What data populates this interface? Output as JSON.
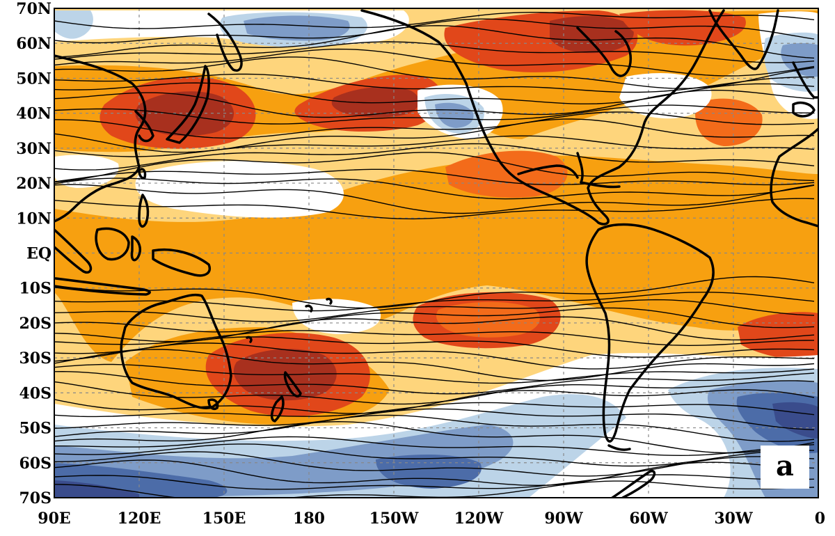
{
  "map": {
    "panel_label": "a",
    "colors": {
      "dark_red": "#a8301e",
      "red": "#e1471a",
      "orange_red": "#f36b1a",
      "orange": "#f7a010",
      "light_orange": "#fed57c",
      "white": "#ffffff",
      "light_blue": "#bcd4e8",
      "blue": "#7e9cc8",
      "dark_blue": "#4c6ca8",
      "navy": "#3a4c8c",
      "coastline": "#000000",
      "contour": "#000000",
      "grid": "#888888"
    },
    "lat_ticks": [
      {
        "label": "70N",
        "lat": 70
      },
      {
        "label": "60N",
        "lat": 60
      },
      {
        "label": "50N",
        "lat": 50
      },
      {
        "label": "40N",
        "lat": 40
      },
      {
        "label": "30N",
        "lat": 30
      },
      {
        "label": "20N",
        "lat": 20
      },
      {
        "label": "10N",
        "lat": 10
      },
      {
        "label": "EQ",
        "lat": 0
      },
      {
        "label": "10S",
        "lat": -10
      },
      {
        "label": "20S",
        "lat": -20
      },
      {
        "label": "30S",
        "lat": -30
      },
      {
        "label": "40S",
        "lat": -40
      },
      {
        "label": "50S",
        "lat": -50
      },
      {
        "label": "60S",
        "lat": -60
      },
      {
        "label": "70S",
        "lat": -70
      }
    ],
    "lon_ticks": [
      {
        "label": "90E",
        "lon": 90
      },
      {
        "label": "120E",
        "lon": 120
      },
      {
        "label": "150E",
        "lon": 150
      },
      {
        "label": "180",
        "lon": 180
      },
      {
        "label": "150W",
        "lon": 210
      },
      {
        "label": "120W",
        "lon": 240
      },
      {
        "label": "90W",
        "lon": 270
      },
      {
        "label": "60W",
        "lon": 300
      },
      {
        "label": "30W",
        "lon": 330
      },
      {
        "label": "0",
        "lon": 360
      }
    ]
  }
}
